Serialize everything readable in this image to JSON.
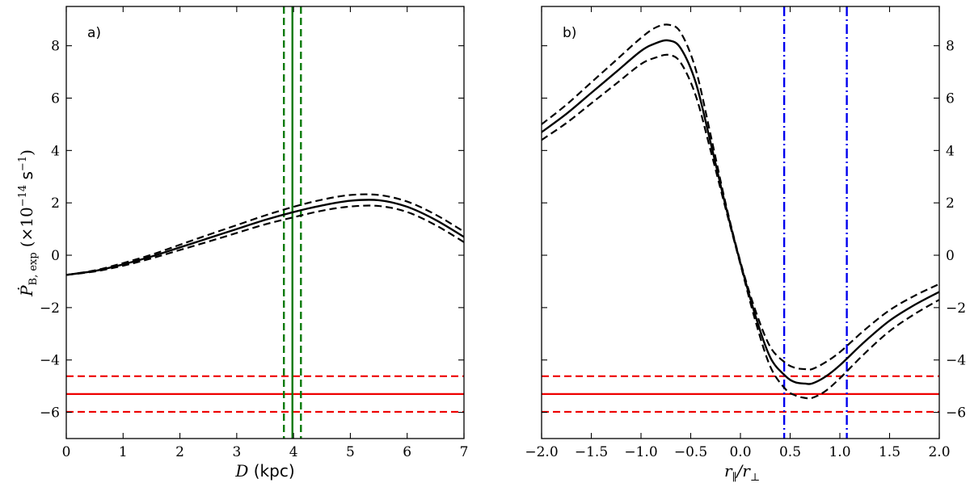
{
  "chart_data": [
    {
      "panel": "a)",
      "type": "line",
      "xlabel": "D (kpc)",
      "ylabel": "Ṗ_B,exp (×10^-14 s^-1)",
      "xlim": [
        0,
        7
      ],
      "ylim": [
        -7,
        9.5
      ],
      "xticks": [
        0,
        1,
        2,
        3,
        4,
        5,
        6,
        7
      ],
      "yticks": [
        -6,
        -4,
        -2,
        0,
        2,
        4,
        6,
        8
      ],
      "series": [
        {
          "name": "expected",
          "style": "solid",
          "color": "#000000",
          "x": [
            0,
            0.5,
            1,
            1.5,
            2,
            2.5,
            3,
            3.5,
            4,
            4.5,
            5,
            5.5,
            6,
            6.5,
            7
          ],
          "y": [
            -0.75,
            -0.6,
            -0.35,
            -0.05,
            0.3,
            0.65,
            1.0,
            1.35,
            1.65,
            1.9,
            2.08,
            2.1,
            1.85,
            1.35,
            0.7
          ]
        },
        {
          "name": "expected upper",
          "style": "dashed",
          "color": "#000000",
          "x": [
            0,
            0.5,
            1,
            1.5,
            2,
            2.5,
            3,
            3.5,
            4,
            4.5,
            5,
            5.5,
            6,
            6.5,
            7
          ],
          "y": [
            -0.75,
            -0.58,
            -0.3,
            0.02,
            0.4,
            0.78,
            1.15,
            1.52,
            1.85,
            2.12,
            2.3,
            2.3,
            2.05,
            1.55,
            0.9
          ]
        },
        {
          "name": "expected lower",
          "style": "dashed",
          "color": "#000000",
          "x": [
            0,
            0.5,
            1,
            1.5,
            2,
            2.5,
            3,
            3.5,
            4,
            4.5,
            5,
            5.5,
            6,
            6.5,
            7
          ],
          "y": [
            -0.75,
            -0.62,
            -0.4,
            -0.12,
            0.2,
            0.52,
            0.85,
            1.18,
            1.45,
            1.7,
            1.86,
            1.88,
            1.65,
            1.15,
            0.5
          ]
        }
      ],
      "hlines": [
        {
          "y": -5.3,
          "style": "solid",
          "color": "#ee0000"
        },
        {
          "y": -4.62,
          "style": "dashed",
          "color": "#ee0000"
        },
        {
          "y": -5.98,
          "style": "dashed",
          "color": "#ee0000"
        }
      ],
      "vlines": [
        {
          "x": 3.98,
          "style": "solid",
          "color": "#0a7a0a"
        },
        {
          "x": 3.83,
          "style": "dashed",
          "color": "#0a7a0a"
        },
        {
          "x": 4.13,
          "style": "dashed",
          "color": "#0a7a0a"
        }
      ]
    },
    {
      "panel": "b)",
      "type": "line",
      "xlabel": "r_∥/r_⊥",
      "ylabel": "",
      "xlim": [
        -2.0,
        2.0
      ],
      "ylim": [
        -7,
        9.5
      ],
      "xticks": [
        -2.0,
        -1.5,
        -1.0,
        -0.5,
        0.0,
        0.5,
        1.0,
        1.5,
        2.0
      ],
      "yticks": [
        -6,
        -4,
        -2,
        0,
        2,
        4,
        6,
        8
      ],
      "series": [
        {
          "name": "expected",
          "style": "solid",
          "color": "#000000",
          "x": [
            -2.0,
            -1.75,
            -1.5,
            -1.25,
            -1.0,
            -0.85,
            -0.72,
            -0.6,
            -0.45,
            -0.3,
            -0.15,
            0.0,
            0.15,
            0.3,
            0.45,
            0.55,
            0.65,
            0.72,
            0.85,
            1.0,
            1.25,
            1.5,
            1.75,
            2.0
          ],
          "y": [
            4.7,
            5.4,
            6.2,
            7.0,
            7.8,
            8.1,
            8.2,
            7.9,
            6.6,
            4.3,
            1.9,
            -0.3,
            -2.3,
            -3.9,
            -4.6,
            -4.85,
            -4.9,
            -4.9,
            -4.65,
            -4.2,
            -3.3,
            -2.5,
            -1.9,
            -1.4
          ]
        },
        {
          "name": "expected upper",
          "style": "dashed",
          "color": "#000000",
          "x": [
            -2.0,
            -1.75,
            -1.5,
            -1.25,
            -1.0,
            -0.85,
            -0.72,
            -0.6,
            -0.45,
            -0.3,
            -0.15,
            0.0,
            0.15,
            0.3,
            0.45,
            0.55,
            0.65,
            0.72,
            0.85,
            1.0,
            1.25,
            1.5,
            1.75,
            2.0
          ],
          "y": [
            5.0,
            5.75,
            6.6,
            7.45,
            8.3,
            8.7,
            8.8,
            8.5,
            7.1,
            4.6,
            2.0,
            -0.25,
            -2.1,
            -3.5,
            -4.1,
            -4.3,
            -4.35,
            -4.35,
            -4.1,
            -3.7,
            -2.85,
            -2.1,
            -1.55,
            -1.1
          ]
        },
        {
          "name": "expected lower",
          "style": "dashed",
          "color": "#000000",
          "x": [
            -2.0,
            -1.75,
            -1.5,
            -1.25,
            -1.0,
            -0.85,
            -0.72,
            -0.6,
            -0.45,
            -0.3,
            -0.15,
            0.0,
            0.15,
            0.3,
            0.45,
            0.55,
            0.65,
            0.72,
            0.85,
            1.0,
            1.25,
            1.5,
            1.75,
            2.0
          ],
          "y": [
            4.4,
            5.05,
            5.8,
            6.55,
            7.3,
            7.55,
            7.65,
            7.35,
            6.1,
            4.0,
            1.8,
            -0.35,
            -2.5,
            -4.25,
            -5.1,
            -5.35,
            -5.45,
            -5.45,
            -5.2,
            -4.7,
            -3.75,
            -2.9,
            -2.25,
            -1.7
          ]
        }
      ],
      "hlines": [
        {
          "y": -5.3,
          "style": "solid",
          "color": "#ee0000"
        },
        {
          "y": -4.62,
          "style": "dashed",
          "color": "#ee0000"
        },
        {
          "y": -5.98,
          "style": "dashed",
          "color": "#ee0000"
        }
      ],
      "vlines": [
        {
          "x": 0.44,
          "style": "dashdot",
          "color": "#0000ee"
        },
        {
          "x": 1.07,
          "style": "dashdot",
          "color": "#0000ee"
        }
      ]
    }
  ],
  "text": {
    "panel_a_label": "a)",
    "panel_b_label": "b)",
    "ylabel_main": "Ṗ",
    "ylabel_sub": "B, exp",
    "ylabel_units": "(×10",
    "ylabel_exp": "−14",
    "ylabel_units_end": " s",
    "ylabel_exp2": "−1",
    "ylabel_close": ")",
    "xlabel_a_var": "D",
    "xlabel_a_unit": " (kpc)",
    "xlabel_b_num": "r",
    "xlabel_b_num_sub": "∥",
    "xlabel_b_slash": "/r",
    "xlabel_b_den_sub": "⊥"
  }
}
